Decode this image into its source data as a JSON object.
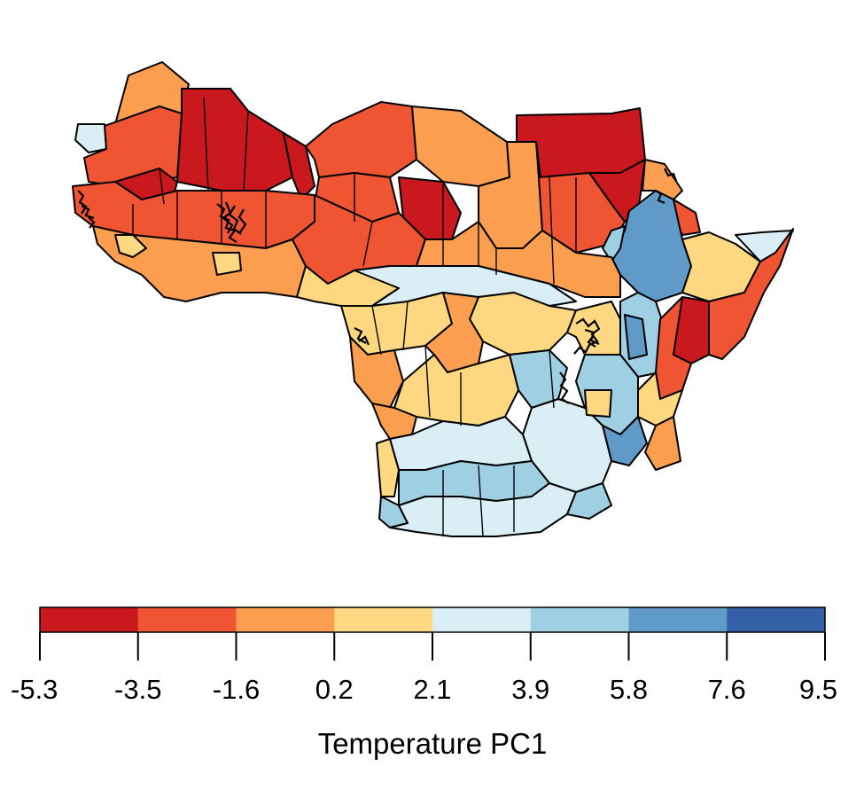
{
  "palette": {
    "c1": "#C9191E",
    "c2": "#EF5433",
    "c3": "#FC9E4F",
    "c4": "#FED880",
    "c5": "#D9EFF5",
    "c6": "#9ECFE2",
    "c7": "#5F9AC9",
    "c8": "#3460A8"
  },
  "map": {
    "region_classes": [
      "c1",
      "c2",
      "c3",
      "c4",
      "c5",
      "c6",
      "c7"
    ]
  },
  "legend": {
    "title": "Temperature PC1",
    "breaks": [
      "-5.3",
      "-3.5",
      "-1.6",
      "0.2",
      "2.1",
      "3.9",
      "5.8",
      "7.6",
      "9.5"
    ],
    "colors": [
      "#C9191E",
      "#EF5433",
      "#FC9E4F",
      "#FED880",
      "#D9EFF5",
      "#9ECFE2",
      "#5F9AC9",
      "#3460A8"
    ]
  }
}
